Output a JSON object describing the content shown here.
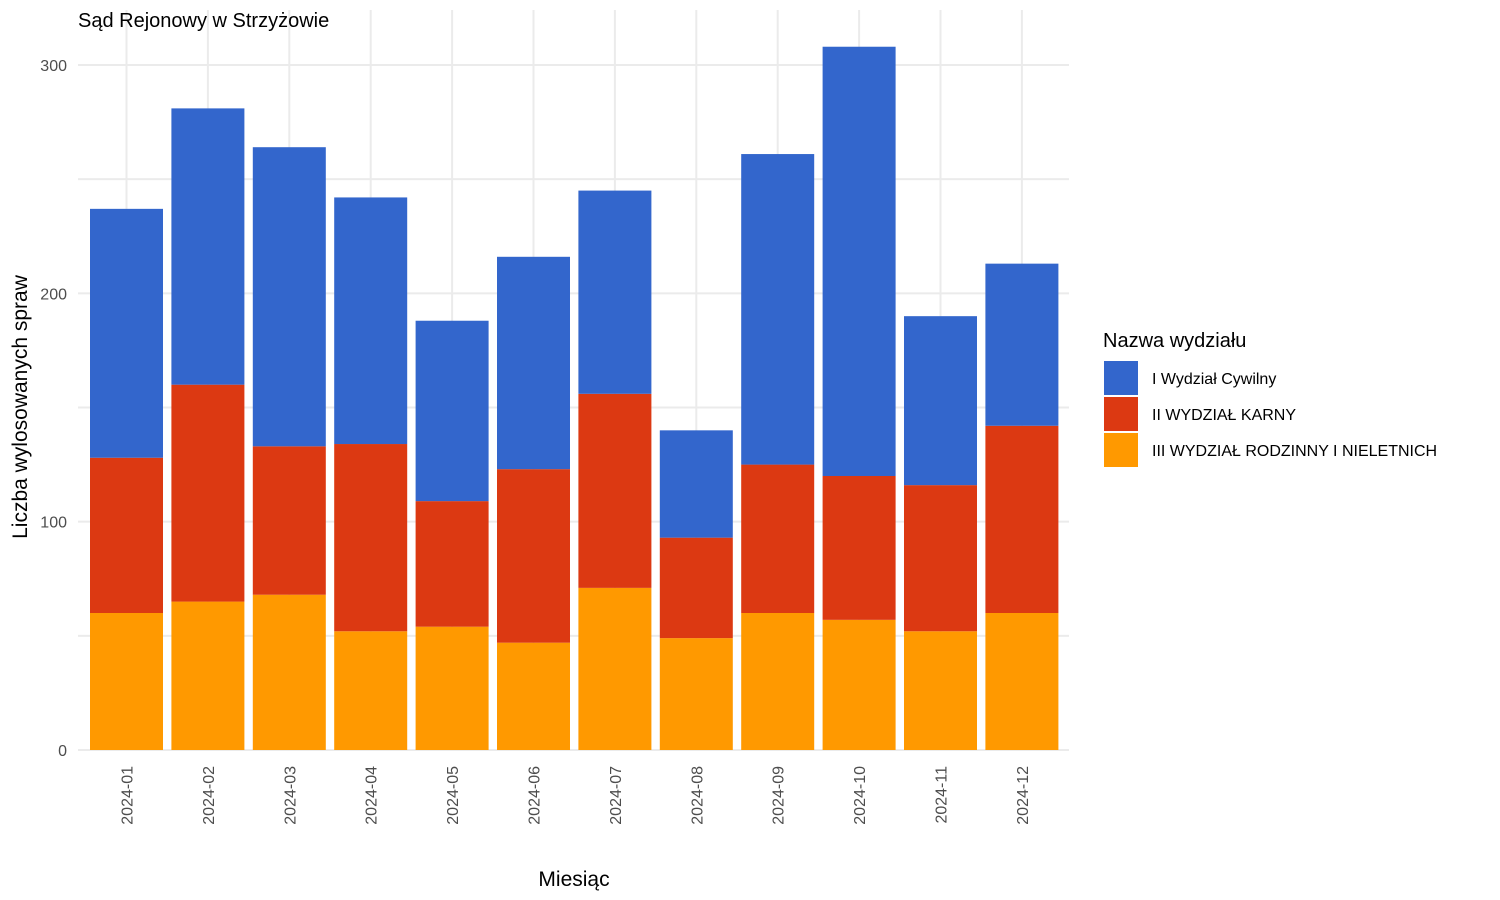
{
  "chart_data": {
    "type": "bar",
    "stacked": true,
    "title": "Sąd Rejonowy w Strzyżowie",
    "xlabel": "Miesiąc",
    "ylabel": "Liczba wylosowanych spraw",
    "ylim": [
      0,
      312
    ],
    "yticks": [
      0,
      100,
      200,
      300
    ],
    "grid": true,
    "legend_position": "right",
    "legend_title": "Nazwa wydziału",
    "categories": [
      "2024-01",
      "2024-02",
      "2024-03",
      "2024-04",
      "2024-05",
      "2024-06",
      "2024-07",
      "2024-08",
      "2024-09",
      "2024-10",
      "2024-11",
      "2024-12"
    ],
    "series": [
      {
        "name": "III WYDZIAŁ RODZINNY I NIELETNICH",
        "color": "#FF9900",
        "values": [
          60,
          65,
          68,
          52,
          54,
          47,
          71,
          49,
          60,
          57,
          52,
          60
        ]
      },
      {
        "name": "II WYDZIAŁ KARNY",
        "color": "#DC3912",
        "values": [
          68,
          95,
          65,
          82,
          55,
          76,
          85,
          44,
          65,
          63,
          64,
          82
        ]
      },
      {
        "name": "I Wydział Cywilny",
        "color": "#3366CC",
        "values": [
          109,
          121,
          131,
          108,
          79,
          93,
          89,
          47,
          136,
          188,
          74,
          71
        ]
      }
    ],
    "legend_order": [
      "I Wydział Cywilny",
      "II WYDZIAŁ KARNY",
      "III WYDZIAŁ RODZINNY I NIELETNICH"
    ]
  }
}
